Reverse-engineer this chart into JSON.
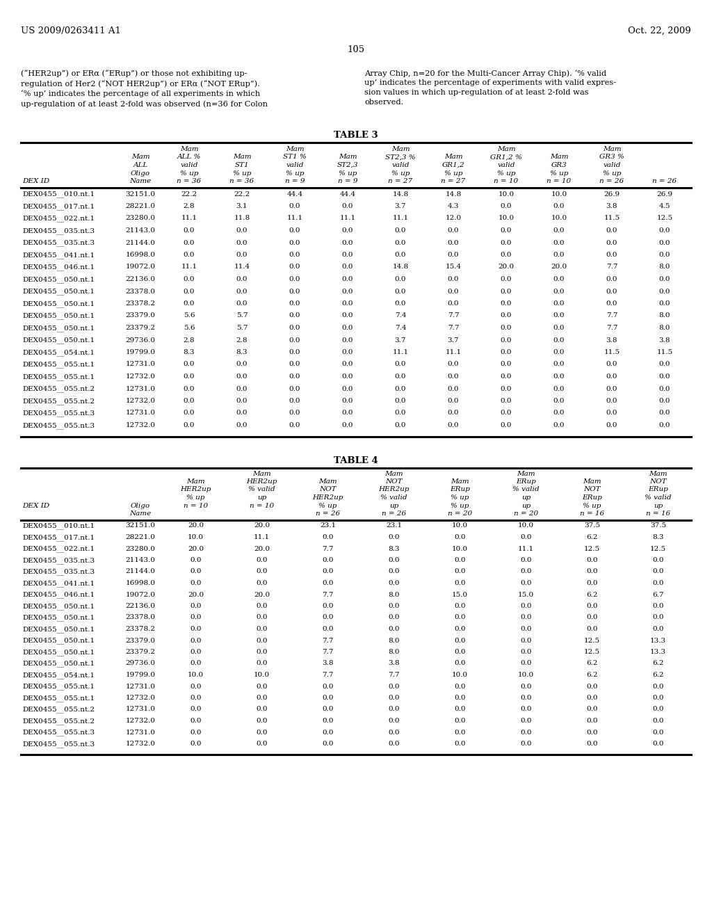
{
  "header_left": "US 2009/0263411 A1",
  "header_right": "Oct. 22, 2009",
  "page_number": "105",
  "para_left": "(“HER2up”) or ERα (“ERup”) or those not exhibiting up-\nregulation of Her2 (“NOT HER2up”) or ERα (“NOT ERup”).\n‘% up’ indicates the percentage of all experiments in which\nup-regulation of at least 2-fold was observed (n=36 for Colon",
  "para_right": "Array Chip, n=20 for the Multi-Cancer Array Chip). ‘% valid\nup’ indicates the percentage of experiments with valid expres-\nsion values in which up-regulation of at least 2-fold was\nobserved.",
  "table3_title": "TABLE 3",
  "table3_data": [
    [
      "DEX0455__010.nt.1",
      "32151.0",
      "22.2",
      "22.2",
      "44.4",
      "44.4",
      "14.8",
      "14.8",
      "10.0",
      "10.0",
      "26.9",
      "26.9"
    ],
    [
      "DEX0455__017.nt.1",
      "28221.0",
      "2.8",
      "3.1",
      "0.0",
      "0.0",
      "3.7",
      "4.3",
      "0.0",
      "0.0",
      "3.8",
      "4.5"
    ],
    [
      "DEX0455__022.nt.1",
      "23280.0",
      "11.1",
      "11.8",
      "11.1",
      "11.1",
      "11.1",
      "12.0",
      "10.0",
      "10.0",
      "11.5",
      "12.5"
    ],
    [
      "DEX0455__035.nt.3",
      "21143.0",
      "0.0",
      "0.0",
      "0.0",
      "0.0",
      "0.0",
      "0.0",
      "0.0",
      "0.0",
      "0.0",
      "0.0"
    ],
    [
      "DEX0455__035.nt.3",
      "21144.0",
      "0.0",
      "0.0",
      "0.0",
      "0.0",
      "0.0",
      "0.0",
      "0.0",
      "0.0",
      "0.0",
      "0.0"
    ],
    [
      "DEX0455__041.nt.1",
      "16998.0",
      "0.0",
      "0.0",
      "0.0",
      "0.0",
      "0.0",
      "0.0",
      "0.0",
      "0.0",
      "0.0",
      "0.0"
    ],
    [
      "DEX0455__046.nt.1",
      "19072.0",
      "11.1",
      "11.4",
      "0.0",
      "0.0",
      "14.8",
      "15.4",
      "20.0",
      "20.0",
      "7.7",
      "8.0"
    ],
    [
      "DEX0455__050.nt.1",
      "22136.0",
      "0.0",
      "0.0",
      "0.0",
      "0.0",
      "0.0",
      "0.0",
      "0.0",
      "0.0",
      "0.0",
      "0.0"
    ],
    [
      "DEX0455__050.nt.1",
      "23378.0",
      "0.0",
      "0.0",
      "0.0",
      "0.0",
      "0.0",
      "0.0",
      "0.0",
      "0.0",
      "0.0",
      "0.0"
    ],
    [
      "DEX0455__050.nt.1",
      "23378.2",
      "0.0",
      "0.0",
      "0.0",
      "0.0",
      "0.0",
      "0.0",
      "0.0",
      "0.0",
      "0.0",
      "0.0"
    ],
    [
      "DEX0455__050.nt.1",
      "23379.0",
      "5.6",
      "5.7",
      "0.0",
      "0.0",
      "7.4",
      "7.7",
      "0.0",
      "0.0",
      "7.7",
      "8.0"
    ],
    [
      "DEX0455__050.nt.1",
      "23379.2",
      "5.6",
      "5.7",
      "0.0",
      "0.0",
      "7.4",
      "7.7",
      "0.0",
      "0.0",
      "7.7",
      "8.0"
    ],
    [
      "DEX0455__050.nt.1",
      "29736.0",
      "2.8",
      "2.8",
      "0.0",
      "0.0",
      "3.7",
      "3.7",
      "0.0",
      "0.0",
      "3.8",
      "3.8"
    ],
    [
      "DEX0455__054.nt.1",
      "19799.0",
      "8.3",
      "8.3",
      "0.0",
      "0.0",
      "11.1",
      "11.1",
      "0.0",
      "0.0",
      "11.5",
      "11.5"
    ],
    [
      "DEX0455__055.nt.1",
      "12731.0",
      "0.0",
      "0.0",
      "0.0",
      "0.0",
      "0.0",
      "0.0",
      "0.0",
      "0.0",
      "0.0",
      "0.0"
    ],
    [
      "DEX0455__055.nt.1",
      "12732.0",
      "0.0",
      "0.0",
      "0.0",
      "0.0",
      "0.0",
      "0.0",
      "0.0",
      "0.0",
      "0.0",
      "0.0"
    ],
    [
      "DEX0455__055.nt.2",
      "12731.0",
      "0.0",
      "0.0",
      "0.0",
      "0.0",
      "0.0",
      "0.0",
      "0.0",
      "0.0",
      "0.0",
      "0.0"
    ],
    [
      "DEX0455__055.nt.2",
      "12732.0",
      "0.0",
      "0.0",
      "0.0",
      "0.0",
      "0.0",
      "0.0",
      "0.0",
      "0.0",
      "0.0",
      "0.0"
    ],
    [
      "DEX0455__055.nt.3",
      "12731.0",
      "0.0",
      "0.0",
      "0.0",
      "0.0",
      "0.0",
      "0.0",
      "0.0",
      "0.0",
      "0.0",
      "0.0"
    ],
    [
      "DEX0455__055.nt.3",
      "12732.0",
      "0.0",
      "0.0",
      "0.0",
      "0.0",
      "0.0",
      "0.0",
      "0.0",
      "0.0",
      "0.0",
      "0.0"
    ]
  ],
  "table4_title": "TABLE 4",
  "table4_data": [
    [
      "DEX0455__010.nt.1",
      "32151.0",
      "20.0",
      "20.0",
      "23.1",
      "23.1",
      "10.0",
      "10.0",
      "37.5",
      "37.5"
    ],
    [
      "DEX0455__017.nt.1",
      "28221.0",
      "10.0",
      "11.1",
      "0.0",
      "0.0",
      "0.0",
      "0.0",
      "6.2",
      "8.3"
    ],
    [
      "DEX0455__022.nt.1",
      "23280.0",
      "20.0",
      "20.0",
      "7.7",
      "8.3",
      "10.0",
      "11.1",
      "12.5",
      "12.5"
    ],
    [
      "DEX0455__035.nt.3",
      "21143.0",
      "0.0",
      "0.0",
      "0.0",
      "0.0",
      "0.0",
      "0.0",
      "0.0",
      "0.0"
    ],
    [
      "DEX0455__035.nt.3",
      "21144.0",
      "0.0",
      "0.0",
      "0.0",
      "0.0",
      "0.0",
      "0.0",
      "0.0",
      "0.0"
    ],
    [
      "DEX0455__041.nt.1",
      "16998.0",
      "0.0",
      "0.0",
      "0.0",
      "0.0",
      "0.0",
      "0.0",
      "0.0",
      "0.0"
    ],
    [
      "DEX0455__046.nt.1",
      "19072.0",
      "20.0",
      "20.0",
      "7.7",
      "8.0",
      "15.0",
      "15.0",
      "6.2",
      "6.7"
    ],
    [
      "DEX0455__050.nt.1",
      "22136.0",
      "0.0",
      "0.0",
      "0.0",
      "0.0",
      "0.0",
      "0.0",
      "0.0",
      "0.0"
    ],
    [
      "DEX0455__050.nt.1",
      "23378.0",
      "0.0",
      "0.0",
      "0.0",
      "0.0",
      "0.0",
      "0.0",
      "0.0",
      "0.0"
    ],
    [
      "DEX0455__050.nt.1",
      "23378.2",
      "0.0",
      "0.0",
      "0.0",
      "0.0",
      "0.0",
      "0.0",
      "0.0",
      "0.0"
    ],
    [
      "DEX0455__050.nt.1",
      "23379.0",
      "0.0",
      "0.0",
      "7.7",
      "8.0",
      "0.0",
      "0.0",
      "12.5",
      "13.3"
    ],
    [
      "DEX0455__050.nt.1",
      "23379.2",
      "0.0",
      "0.0",
      "7.7",
      "8.0",
      "0.0",
      "0.0",
      "12.5",
      "13.3"
    ],
    [
      "DEX0455__050.nt.1",
      "29736.0",
      "0.0",
      "0.0",
      "3.8",
      "3.8",
      "0.0",
      "0.0",
      "6.2",
      "6.2"
    ],
    [
      "DEX0455__054.nt.1",
      "19799.0",
      "10.0",
      "10.0",
      "7.7",
      "7.7",
      "10.0",
      "10.0",
      "6.2",
      "6.2"
    ],
    [
      "DEX0455__055.nt.1",
      "12731.0",
      "0.0",
      "0.0",
      "0.0",
      "0.0",
      "0.0",
      "0.0",
      "0.0",
      "0.0"
    ],
    [
      "DEX0455__055.nt.1",
      "12732.0",
      "0.0",
      "0.0",
      "0.0",
      "0.0",
      "0.0",
      "0.0",
      "0.0",
      "0.0"
    ],
    [
      "DEX0455__055.nt.2",
      "12731.0",
      "0.0",
      "0.0",
      "0.0",
      "0.0",
      "0.0",
      "0.0",
      "0.0",
      "0.0"
    ],
    [
      "DEX0455__055.nt.2",
      "12732.0",
      "0.0",
      "0.0",
      "0.0",
      "0.0",
      "0.0",
      "0.0",
      "0.0",
      "0.0"
    ],
    [
      "DEX0455__055.nt.3",
      "12731.0",
      "0.0",
      "0.0",
      "0.0",
      "0.0",
      "0.0",
      "0.0",
      "0.0",
      "0.0"
    ],
    [
      "DEX0455__055.nt.3",
      "12732.0",
      "0.0",
      "0.0",
      "0.0",
      "0.0",
      "0.0",
      "0.0",
      "0.0",
      "0.0"
    ]
  ]
}
